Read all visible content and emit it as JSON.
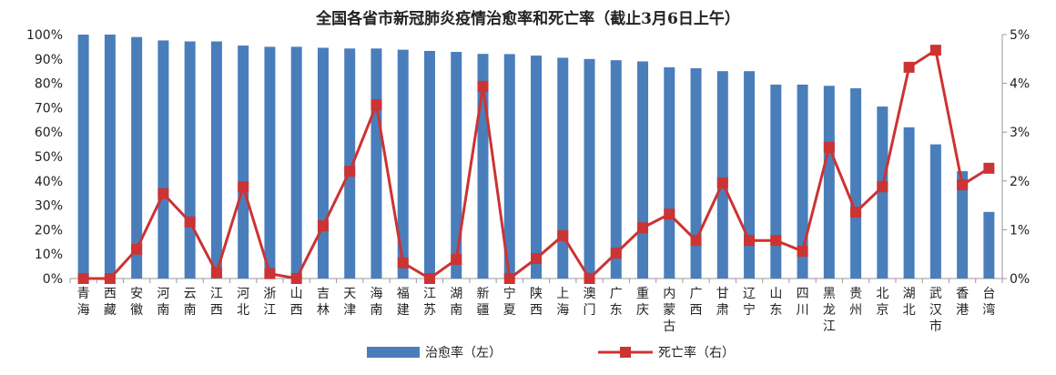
{
  "chart_data": {
    "type": "bar+line",
    "title": "全国各省市新冠肺炎疫情治愈率和死亡率（截止3月6日上午）",
    "categories": [
      "青海",
      "西藏",
      "安徽",
      "河南",
      "云南",
      "江西",
      "河北",
      "浙江",
      "山西",
      "吉林",
      "天津",
      "海南",
      "福建",
      "江苏",
      "湖南",
      "新疆",
      "宁夏",
      "陕西",
      "上海",
      "澳门",
      "广东",
      "重庆",
      "内蒙古",
      "广西",
      "甘肃",
      "辽宁",
      "山东",
      "四川",
      "黑龙江",
      "贵州",
      "北京",
      "湖北",
      "武汉市",
      "香港",
      "台湾"
    ],
    "series": [
      {
        "name": "治愈率（左）",
        "type": "bar",
        "axis": "left",
        "color": "#4a7ebb",
        "values": [
          100,
          100,
          99,
          97.6,
          97.2,
          97.2,
          95.5,
          95,
          95,
          94.6,
          94.3,
          94.3,
          93.8,
          93.3,
          92.9,
          92.1,
          92,
          91.4,
          90.5,
          90,
          89.5,
          89,
          86.6,
          86.2,
          85,
          85,
          79.5,
          79.5,
          79,
          78,
          70.5,
          62,
          55,
          44,
          27.3
        ]
      },
      {
        "name": "死亡率（右）",
        "type": "line",
        "axis": "right",
        "color": "#cc3333",
        "values": [
          0,
          0,
          0.6,
          1.74,
          1.16,
          0.12,
          1.88,
          0.1,
          0,
          1.08,
          2.2,
          3.56,
          0.32,
          0,
          0.39,
          3.94,
          0,
          0.41,
          0.88,
          0,
          0.52,
          1.04,
          1.32,
          0.78,
          1.96,
          0.78,
          0.78,
          0.56,
          2.69,
          1.36,
          1.88,
          4.33,
          4.68,
          1.92,
          2.26
        ]
      }
    ],
    "y_left": {
      "range": [
        0,
        100
      ],
      "unit": "%",
      "ticks": [
        "0%",
        "10%",
        "20%",
        "30%",
        "40%",
        "50%",
        "60%",
        "70%",
        "80%",
        "90%",
        "100%"
      ]
    },
    "y_right": {
      "range": [
        0,
        5
      ],
      "unit": "%",
      "ticks": [
        "0%",
        "1%",
        "2%",
        "3%",
        "4%",
        "5%"
      ]
    },
    "grid": false,
    "legend_placement": "bottom"
  }
}
